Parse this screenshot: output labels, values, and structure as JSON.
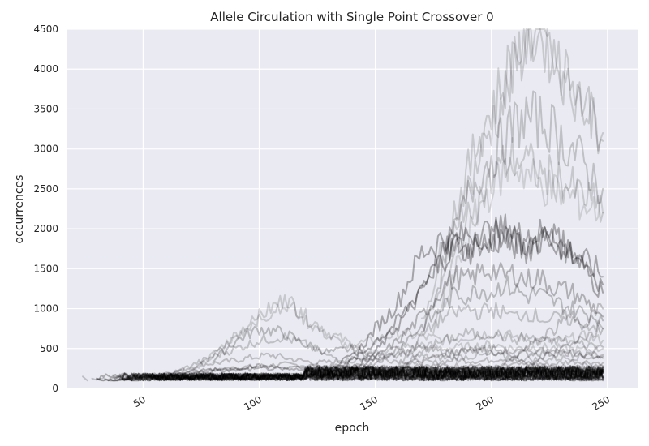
{
  "chart_data": {
    "type": "line",
    "title": "Allele Circulation with Single Point Crossover 0",
    "xlabel": "epoch",
    "ylabel": "occurrences",
    "xlim": [
      17,
      263
    ],
    "ylim": [
      0,
      4500
    ],
    "xticks": [
      50,
      100,
      150,
      200,
      250
    ],
    "yticks": [
      0,
      500,
      1000,
      1500,
      2000,
      2500,
      3000,
      3500,
      4000,
      4500
    ],
    "grid": true,
    "style": "seaborn-darkgrid",
    "line_color": "#000000",
    "note_series": "Many overlapping semi-transparent allele series; values are sampled approximations of the envelope shapes.",
    "series": [
      {
        "opacity": 0.18,
        "start": 24,
        "x": [
          24,
          25,
          26
        ],
        "y": [
          150,
          120,
          100
        ]
      },
      {
        "opacity": 0.18,
        "start": 28,
        "x": [
          28,
          30,
          32,
          34,
          36,
          38,
          40
        ],
        "y": [
          140,
          110,
          135,
          100,
          130,
          110,
          125
        ]
      },
      {
        "opacity": 0.2,
        "start": 50,
        "x": [
          50,
          60,
          70,
          80,
          90,
          100,
          110,
          120,
          130,
          140,
          150,
          160,
          170,
          180,
          190,
          200,
          210,
          220,
          230,
          240,
          248
        ],
        "y": [
          120,
          160,
          200,
          230,
          260,
          280,
          300,
          290,
          270,
          300,
          260,
          280,
          300,
          280,
          300,
          260,
          300,
          280,
          260,
          300,
          280
        ]
      },
      {
        "opacity": 0.2,
        "start": 45,
        "x": [
          45,
          55,
          65,
          75,
          85,
          95,
          105,
          115,
          125,
          135,
          145,
          155,
          165,
          175,
          185,
          195,
          205,
          215,
          225,
          235,
          248
        ],
        "y": [
          110,
          180,
          220,
          300,
          330,
          380,
          420,
          360,
          320,
          340,
          380,
          360,
          340,
          320,
          360,
          340,
          380,
          320,
          300,
          340,
          320
        ]
      },
      {
        "opacity": 0.15,
        "start": 70,
        "x": [
          70,
          80,
          90,
          100,
          105,
          110,
          115,
          120,
          130,
          140,
          150,
          160,
          170,
          180,
          190,
          200,
          210,
          220,
          230,
          240,
          248
        ],
        "y": [
          200,
          400,
          650,
          900,
          1000,
          1100,
          1050,
          900,
          700,
          550,
          600,
          700,
          650,
          600,
          650,
          700,
          650,
          600,
          600,
          650,
          600
        ]
      },
      {
        "opacity": 0.15,
        "start": 75,
        "x": [
          75,
          85,
          95,
          105,
          110,
          115,
          120,
          130,
          140,
          150,
          160,
          170,
          180,
          190,
          200,
          210,
          220,
          230,
          240,
          248
        ],
        "y": [
          300,
          550,
          800,
          950,
          1080,
          1000,
          850,
          650,
          500,
          450,
          500,
          550,
          500,
          520,
          550,
          500,
          520,
          500,
          480,
          500
        ]
      },
      {
        "opacity": 0.22,
        "start": 80,
        "x": [
          80,
          90,
          100,
          110,
          120,
          130,
          140,
          150,
          160,
          170,
          180,
          190,
          200,
          210,
          220,
          230,
          240,
          248
        ],
        "y": [
          350,
          600,
          750,
          700,
          550,
          450,
          500,
          400,
          450,
          500,
          450,
          480,
          450,
          420,
          450,
          430,
          420,
          400
        ]
      },
      {
        "opacity": 0.18,
        "start": 60,
        "x": [
          60,
          70,
          80,
          90,
          100,
          110,
          120,
          130,
          140,
          150,
          160,
          170,
          180,
          190,
          200,
          210,
          220,
          230,
          240,
          248
        ],
        "y": [
          150,
          280,
          400,
          500,
          600,
          650,
          550,
          400,
          350,
          380,
          420,
          400,
          380,
          400,
          420,
          380,
          360,
          380,
          400,
          380
        ]
      },
      {
        "opacity": 0.3,
        "start": 120,
        "x": [
          120,
          130,
          140,
          145,
          150,
          155,
          160,
          165,
          170,
          175,
          180,
          185,
          190,
          195,
          200,
          205,
          210,
          215,
          220,
          225,
          230,
          235,
          240,
          245,
          248
        ],
        "y": [
          150,
          250,
          400,
          550,
          750,
          900,
          1100,
          1400,
          1700,
          1800,
          1900,
          1850,
          1950,
          2000,
          1900,
          2000,
          1950,
          1850,
          1950,
          1900,
          1800,
          1700,
          1600,
          1500,
          1400
        ]
      },
      {
        "opacity": 0.3,
        "start": 125,
        "x": [
          125,
          135,
          145,
          150,
          155,
          160,
          165,
          170,
          175,
          180,
          185,
          190,
          195,
          200,
          205,
          210,
          215,
          220,
          225,
          230,
          235,
          240,
          245,
          248
        ],
        "y": [
          130,
          250,
          450,
          600,
          700,
          850,
          1050,
          1300,
          1500,
          1700,
          1800,
          1750,
          1900,
          1850,
          2000,
          1900,
          1800,
          1850,
          1900,
          1800,
          1700,
          1600,
          1400,
          1300
        ]
      },
      {
        "opacity": 0.3,
        "start": 130,
        "x": [
          130,
          140,
          150,
          160,
          165,
          170,
          175,
          180,
          185,
          190,
          195,
          200,
          205,
          210,
          215,
          220,
          225,
          230,
          235,
          240,
          245,
          248
        ],
        "y": [
          120,
          250,
          450,
          800,
          1000,
          1200,
          1500,
          1650,
          1800,
          1700,
          1850,
          1800,
          1900,
          1800,
          1700,
          1900,
          2000,
          1800,
          1700,
          1500,
          1300,
          1200
        ]
      },
      {
        "opacity": 0.25,
        "start": 130,
        "x": [
          130,
          140,
          150,
          160,
          170,
          175,
          180,
          185,
          190,
          195,
          200,
          205,
          210,
          215,
          220,
          225,
          230,
          235,
          240,
          245,
          248
        ],
        "y": [
          120,
          200,
          380,
          600,
          900,
          1100,
          1300,
          1400,
          1350,
          1450,
          1500,
          1400,
          1450,
          1350,
          1400,
          1300,
          1250,
          1200,
          1100,
          1000,
          900
        ]
      },
      {
        "opacity": 0.22,
        "start": 135,
        "x": [
          135,
          145,
          155,
          165,
          175,
          180,
          185,
          190,
          195,
          200,
          205,
          210,
          215,
          220,
          225,
          230,
          235,
          240,
          245,
          248
        ],
        "y": [
          120,
          250,
          400,
          650,
          900,
          1050,
          1200,
          1150,
          1250,
          1200,
          1300,
          1250,
          1150,
          1200,
          1100,
          1050,
          1000,
          950,
          900,
          850
        ]
      },
      {
        "opacity": 0.15,
        "start": 170,
        "x": [
          170,
          175,
          180,
          185,
          190,
          195,
          200,
          205,
          210,
          215,
          220,
          225,
          230,
          235,
          240,
          245,
          248
        ],
        "y": [
          800,
          1300,
          1900,
          2300,
          2700,
          3200,
          3500,
          3800,
          4200,
          4400,
          4500,
          4300,
          4000,
          3800,
          3600,
          3400,
          3200
        ]
      },
      {
        "opacity": 0.15,
        "start": 175,
        "x": [
          175,
          180,
          185,
          190,
          195,
          200,
          205,
          210,
          215,
          220,
          225,
          230,
          235,
          240,
          245,
          248
        ],
        "y": [
          900,
          1500,
          2100,
          2500,
          2900,
          3300,
          3600,
          4000,
          4450,
          4500,
          4200,
          3900,
          3700,
          3500,
          3300,
          3100
        ]
      },
      {
        "opacity": 0.18,
        "start": 170,
        "x": [
          170,
          175,
          180,
          185,
          190,
          195,
          200,
          205,
          210,
          215,
          220,
          225,
          230,
          235,
          240,
          245,
          248
        ],
        "y": [
          700,
          1100,
          1600,
          2000,
          2400,
          2700,
          2900,
          3100,
          3300,
          3400,
          3350,
          3300,
          3100,
          3000,
          2800,
          2600,
          2500
        ]
      },
      {
        "opacity": 0.15,
        "start": 175,
        "x": [
          175,
          180,
          185,
          190,
          195,
          200,
          205,
          210,
          215,
          220,
          225,
          230,
          235,
          240,
          245,
          248
        ],
        "y": [
          700,
          1200,
          1700,
          2100,
          2400,
          2600,
          2800,
          2900,
          2850,
          2700,
          2650,
          2600,
          2500,
          2400,
          2300,
          2200
        ]
      },
      {
        "opacity": 0.12,
        "start": 180,
        "x": [
          180,
          185,
          190,
          195,
          200,
          205,
          210,
          215,
          220,
          225,
          230,
          235,
          240,
          245,
          248
        ],
        "y": [
          1000,
          1500,
          1900,
          2300,
          2500,
          2700,
          2800,
          2700,
          2600,
          2500,
          2450,
          2400,
          2300,
          2250,
          2200
        ]
      },
      {
        "opacity": 0.18,
        "start": 160,
        "x": [
          160,
          165,
          170,
          175,
          180,
          185,
          190,
          195,
          200,
          205,
          210,
          215,
          220,
          225,
          230,
          235,
          240,
          245,
          248
        ],
        "y": [
          300,
          450,
          650,
          800,
          900,
          950,
          1000,
          950,
          1000,
          950,
          900,
          950,
          900,
          850,
          900,
          850,
          800,
          780,
          750
        ]
      },
      {
        "opacity": 0.18,
        "start": 160,
        "x": [
          160,
          165,
          170,
          175,
          180,
          185,
          190,
          195,
          200,
          205,
          210,
          215,
          220,
          225,
          230,
          235,
          240,
          245,
          248
        ],
        "y": [
          250,
          350,
          450,
          550,
          600,
          650,
          700,
          650,
          700,
          650,
          600,
          650,
          600,
          580,
          600,
          580,
          550,
          530,
          520
        ]
      },
      {
        "opacity": 0.2,
        "start": 150,
        "x": [
          150,
          160,
          170,
          180,
          190,
          200,
          210,
          220,
          230,
          240,
          248
        ],
        "y": [
          150,
          250,
          350,
          420,
          480,
          500,
          450,
          480,
          460,
          440,
          420
        ]
      },
      {
        "opacity": 0.25,
        "start": 40,
        "x": [
          40,
          50,
          60,
          70,
          80,
          90,
          100,
          110,
          120,
          130,
          140,
          150,
          160,
          170,
          180,
          190,
          200,
          210,
          220,
          230,
          240,
          248
        ],
        "y": [
          100,
          150,
          180,
          210,
          240,
          260,
          280,
          260,
          250,
          270,
          260,
          250,
          260,
          250,
          240,
          250,
          260,
          240,
          250,
          240,
          230,
          220
        ]
      },
      {
        "opacity": 0.25,
        "start": 45,
        "x": [
          45,
          55,
          65,
          75,
          85,
          95,
          105,
          115,
          125,
          135,
          145,
          155,
          165,
          175,
          185,
          195,
          205,
          215,
          225,
          235,
          248
        ],
        "y": [
          100,
          140,
          170,
          200,
          220,
          240,
          250,
          230,
          220,
          240,
          230,
          220,
          230,
          220,
          210,
          220,
          230,
          210,
          220,
          210,
          200
        ]
      },
      {
        "opacity": 0.3,
        "start": 35,
        "x": [
          35,
          45,
          55,
          65,
          75,
          85,
          95,
          105,
          115,
          125,
          135,
          145,
          155,
          165,
          175,
          185,
          195,
          205,
          215,
          225,
          235,
          248
        ],
        "y": [
          100,
          120,
          140,
          150,
          160,
          170,
          180,
          170,
          160,
          170,
          160,
          150,
          160,
          150,
          140,
          150,
          160,
          140,
          150,
          140,
          130,
          120
        ]
      },
      {
        "opacity": 0.35,
        "start": 30,
        "x": [
          30,
          40,
          50,
          60,
          70,
          80,
          90,
          100,
          110,
          120,
          130,
          140,
          150,
          160,
          170,
          180,
          190,
          200,
          210,
          220,
          230,
          240,
          248
        ],
        "y": [
          100,
          105,
          110,
          115,
          120,
          125,
          130,
          125,
          120,
          125,
          120,
          115,
          120,
          115,
          110,
          115,
          120,
          110,
          115,
          110,
          108,
          105,
          100
        ]
      },
      {
        "opacity": 0.2,
        "start": 200,
        "x": [
          200,
          205,
          210,
          215,
          220,
          225,
          230,
          235,
          240,
          245,
          248
        ],
        "y": [
          150,
          300,
          400,
          500,
          600,
          700,
          800,
          900,
          850,
          950,
          1000
        ]
      },
      {
        "opacity": 0.2,
        "start": 210,
        "x": [
          210,
          215,
          220,
          225,
          230,
          235,
          240,
          245,
          248
        ],
        "y": [
          150,
          250,
          350,
          450,
          500,
          600,
          650,
          700,
          750
        ]
      }
    ]
  }
}
